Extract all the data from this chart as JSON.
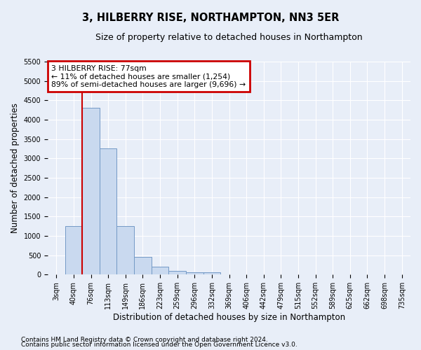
{
  "title": "3, HILBERRY RISE, NORTHAMPTON, NN3 5ER",
  "subtitle": "Size of property relative to detached houses in Northampton",
  "xlabel": "Distribution of detached houses by size in Northampton",
  "ylabel": "Number of detached properties",
  "footnote1": "Contains HM Land Registry data © Crown copyright and database right 2024.",
  "footnote2": "Contains public sector information licensed under the Open Government Licence v3.0.",
  "categories": [
    "3sqm",
    "40sqm",
    "76sqm",
    "113sqm",
    "149sqm",
    "186sqm",
    "223sqm",
    "259sqm",
    "296sqm",
    "332sqm",
    "369sqm",
    "406sqm",
    "442sqm",
    "479sqm",
    "515sqm",
    "552sqm",
    "589sqm",
    "625sqm",
    "662sqm",
    "698sqm",
    "735sqm"
  ],
  "values": [
    0,
    1250,
    4300,
    3250,
    1250,
    450,
    200,
    100,
    60,
    60,
    0,
    0,
    0,
    0,
    0,
    0,
    0,
    0,
    0,
    0,
    0
  ],
  "bar_color": "#c9d9ef",
  "bar_edge_color": "#7399c6",
  "vline_x_index": 2,
  "vline_color": "#cc0000",
  "annotation_line1": "3 HILBERRY RISE: 77sqm",
  "annotation_line2": "← 11% of detached houses are smaller (1,254)",
  "annotation_line3": "89% of semi-detached houses are larger (9,696) →",
  "annotation_box_color": "#cc0000",
  "annotation_box_facecolor": "white",
  "ylim": [
    0,
    5500
  ],
  "yticks": [
    0,
    500,
    1000,
    1500,
    2000,
    2500,
    3000,
    3500,
    4000,
    4500,
    5000,
    5500
  ],
  "background_color": "#e8eef8",
  "plot_bg_color": "#e8eef8",
  "grid_color": "#ffffff",
  "title_fontsize": 10.5,
  "subtitle_fontsize": 9,
  "tick_fontsize": 7,
  "ylabel_fontsize": 8.5,
  "xlabel_fontsize": 8.5,
  "footnote_fontsize": 6.5
}
